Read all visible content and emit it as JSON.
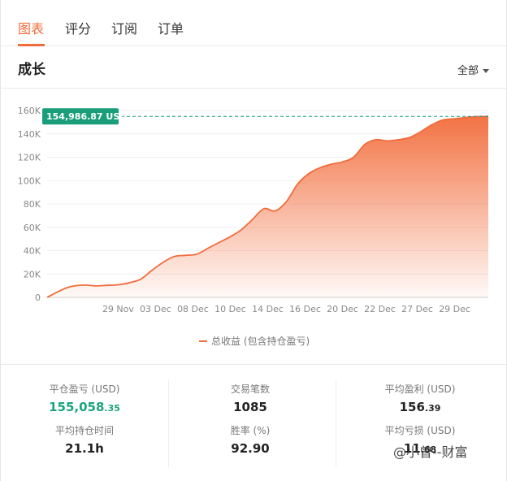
{
  "tabs": [
    {
      "label": "图表",
      "active": true
    },
    {
      "label": "评分",
      "active": false
    },
    {
      "label": "订阅",
      "active": false
    },
    {
      "label": "订单",
      "active": false
    }
  ],
  "section": {
    "title": "成长",
    "range_select": "全部"
  },
  "chart_data": {
    "type": "area",
    "title": "",
    "xlabel": "",
    "ylabel": "",
    "ylim": [
      0,
      160000
    ],
    "ytick_labels": [
      "0",
      "20K",
      "40K",
      "60K",
      "80K",
      "100K",
      "120K",
      "140K",
      "160K"
    ],
    "ytick_values": [
      0,
      20000,
      40000,
      60000,
      80000,
      100000,
      120000,
      140000,
      160000
    ],
    "xtick_labels": [
      "29 Nov",
      "03 Dec",
      "08 Dec",
      "10 Dec",
      "14 Dec",
      "16 Dec",
      "20 Dec",
      "22 Dec",
      "27 Dec",
      "29 Dec"
    ],
    "xtick_positions": [
      1,
      2,
      3,
      4,
      5,
      6,
      7,
      8,
      9,
      10
    ],
    "xlim": [
      -0.9,
      10.9
    ],
    "series": [
      {
        "name": "总收益 (包含持仓盈亏)",
        "color": "#f26b3a",
        "x": [
          -0.9,
          -0.6,
          -0.3,
          0.1,
          0.4,
          0.7,
          1.0,
          1.3,
          1.6,
          1.9,
          2.2,
          2.5,
          2.8,
          3.1,
          3.4,
          3.7,
          4.0,
          4.3,
          4.6,
          4.9,
          5.2,
          5.5,
          5.8,
          6.1,
          6.4,
          6.7,
          7.0,
          7.3,
          7.6,
          7.9,
          8.2,
          8.5,
          8.8,
          9.1,
          9.4,
          9.7,
          10.0,
          10.3,
          10.6,
          10.9
        ],
        "values": [
          0,
          5000,
          9000,
          10500,
          9800,
          10300,
          10800,
          12500,
          15500,
          23000,
          30000,
          35000,
          36000,
          37000,
          42000,
          47000,
          52000,
          58000,
          67000,
          76000,
          74000,
          82000,
          97000,
          106000,
          111000,
          114000,
          116000,
          120000,
          131000,
          135000,
          134000,
          135000,
          137000,
          142000,
          148000,
          152000,
          153000,
          154000,
          154800,
          154986.87
        ]
      }
    ],
    "reference_line": {
      "value": 154986.87,
      "label": "154,986.87 USD",
      "color": "#1a9e7a"
    },
    "grid": true,
    "legend": "bottom-center"
  },
  "stats": [
    {
      "label": "平仓盈亏 (USD)",
      "int": "155,058",
      "dec": ".35",
      "accent": true
    },
    {
      "label": "交易笔数",
      "int": "1085",
      "dec": "",
      "accent": false
    },
    {
      "label": "平均盈利 (USD)",
      "int": "156",
      "dec": ".39",
      "accent": false
    },
    {
      "label": "平均持仓时间",
      "int": "21.1h",
      "dec": "",
      "accent": false
    },
    {
      "label": "胜率 (%)",
      "int": "92.90",
      "dec": "",
      "accent": false
    },
    {
      "label": "平均亏损 (USD)",
      "int": "11",
      "dec": ".68",
      "accent": false
    }
  ],
  "watermark": "@小曾--财富"
}
